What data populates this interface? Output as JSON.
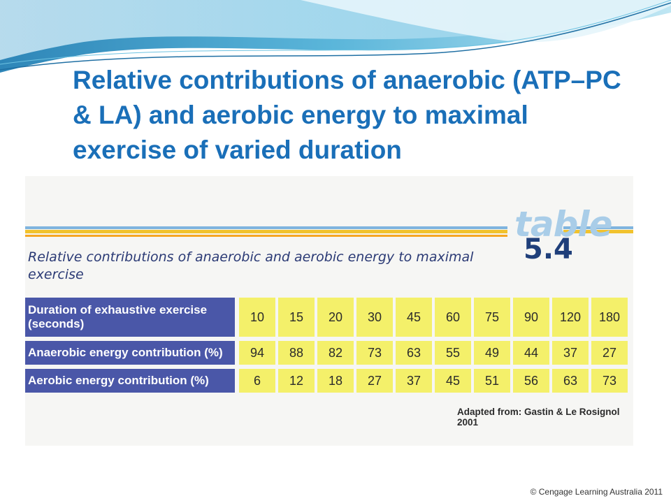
{
  "slide": {
    "title": "Relative contributions of anaerobic (ATP–PC & LA) and aerobic energy to maximal exercise of varied duration",
    "copyright": "© Cengage Learning Australia 2011"
  },
  "figure": {
    "badge_word": "table",
    "badge_number": "5.4",
    "caption": "Relative contributions of anaerobic and aerobic energy to maximal exercise",
    "source": "Adapted from: Gastin & Le Rosignol 2001",
    "rows": [
      {
        "label": "Duration of exhaustive exercise (seconds)",
        "values": [
          "10",
          "15",
          "20",
          "30",
          "45",
          "60",
          "75",
          "90",
          "120",
          "180"
        ]
      },
      {
        "label": "Anaerobic energy contribution (%)",
        "values": [
          "94",
          "88",
          "82",
          "73",
          "63",
          "55",
          "49",
          "44",
          "37",
          "27"
        ]
      },
      {
        "label": "Aerobic energy contribution (%)",
        "values": [
          "6",
          "12",
          "18",
          "27",
          "37",
          "45",
          "51",
          "56",
          "63",
          "73"
        ]
      }
    ]
  },
  "colors": {
    "title": "#1a6fb8",
    "row_label_bg": "#4a57a8",
    "cell_bg": "#f4f06a"
  }
}
